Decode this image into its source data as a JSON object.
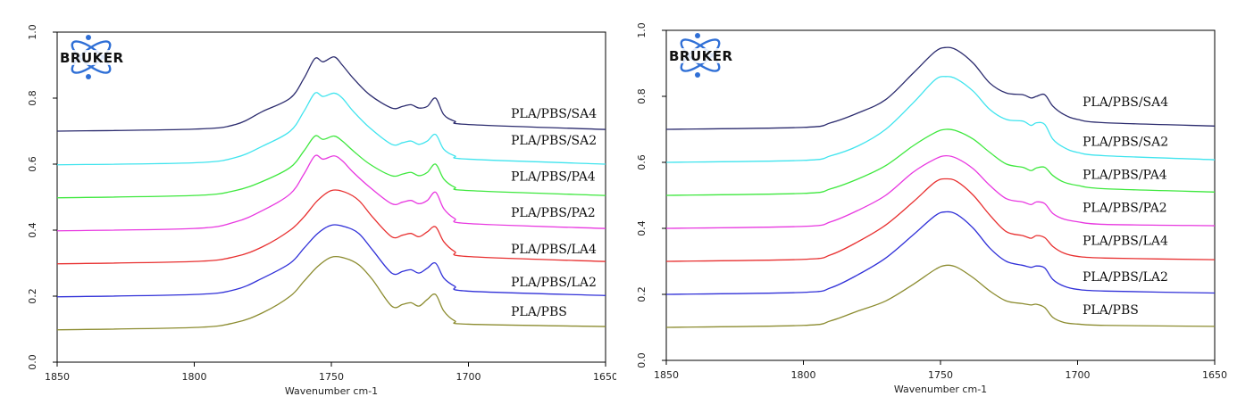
{
  "chart_data": [
    {
      "type": "line",
      "title": "",
      "xlabel": "Wavenumber cm-1",
      "ylabel": "",
      "xlim": [
        1850,
        1650
      ],
      "x_reversed": true,
      "ylim": [
        0.0,
        1.0
      ],
      "xticks": [
        "1850",
        "1800",
        "1750",
        "1700",
        "1650"
      ],
      "yticks": [
        "0.0",
        "0.2",
        "0.4",
        "0.6",
        "0.8",
        "1.0"
      ],
      "grid": false,
      "logo": "BRUKER",
      "series": [
        {
          "name": "PLA/PBS/SA4",
          "color": "#2b2b6e",
          "x": [
            1850,
            1800,
            1785,
            1775,
            1765,
            1760,
            1756,
            1753,
            1749,
            1746,
            1742,
            1736,
            1728,
            1724,
            1721,
            1718,
            1715,
            1712,
            1709,
            1705,
            1700,
            1650
          ],
          "y": [
            0.7,
            0.706,
            0.72,
            0.76,
            0.8,
            0.86,
            0.92,
            0.91,
            0.925,
            0.9,
            0.86,
            0.81,
            0.77,
            0.775,
            0.78,
            0.77,
            0.775,
            0.8,
            0.75,
            0.73,
            0.72,
            0.705
          ]
        },
        {
          "name": "PLA/PBS/SA2",
          "color": "#40e4ee",
          "x": [
            1850,
            1800,
            1785,
            1775,
            1765,
            1760,
            1756,
            1753,
            1749,
            1746,
            1742,
            1736,
            1728,
            1724,
            1721,
            1718,
            1715,
            1712,
            1709,
            1705,
            1700,
            1650
          ],
          "y": [
            0.598,
            0.604,
            0.62,
            0.655,
            0.7,
            0.76,
            0.815,
            0.805,
            0.815,
            0.8,
            0.76,
            0.71,
            0.66,
            0.665,
            0.67,
            0.66,
            0.67,
            0.69,
            0.645,
            0.625,
            0.615,
            0.6
          ]
        },
        {
          "name": "PLA/PBS/PA4",
          "color": "#3ee83e",
          "x": [
            1850,
            1800,
            1785,
            1775,
            1765,
            1760,
            1756,
            1753,
            1749,
            1746,
            1742,
            1736,
            1728,
            1724,
            1721,
            1718,
            1715,
            1712,
            1709,
            1705,
            1700,
            1650
          ],
          "y": [
            0.498,
            0.505,
            0.52,
            0.548,
            0.59,
            0.64,
            0.685,
            0.675,
            0.685,
            0.67,
            0.64,
            0.6,
            0.565,
            0.57,
            0.575,
            0.565,
            0.575,
            0.6,
            0.555,
            0.53,
            0.52,
            0.505
          ]
        },
        {
          "name": "PLA/PBS/PA2",
          "color": "#e838e0",
          "x": [
            1850,
            1800,
            1785,
            1775,
            1765,
            1760,
            1756,
            1753,
            1749,
            1746,
            1742,
            1736,
            1728,
            1724,
            1721,
            1718,
            1715,
            1712,
            1709,
            1705,
            1700,
            1650
          ],
          "y": [
            0.398,
            0.405,
            0.425,
            0.46,
            0.51,
            0.57,
            0.625,
            0.615,
            0.625,
            0.61,
            0.575,
            0.53,
            0.48,
            0.485,
            0.49,
            0.48,
            0.49,
            0.515,
            0.465,
            0.435,
            0.42,
            0.405
          ]
        },
        {
          "name": "PLA/PBS/LA4",
          "color": "#e83030",
          "x": [
            1850,
            1800,
            1785,
            1775,
            1765,
            1760,
            1755,
            1750,
            1745,
            1740,
            1735,
            1728,
            1724,
            1721,
            1718,
            1715,
            1712,
            1709,
            1705,
            1700,
            1650
          ],
          "y": [
            0.298,
            0.305,
            0.32,
            0.35,
            0.4,
            0.44,
            0.49,
            0.52,
            0.515,
            0.49,
            0.44,
            0.38,
            0.385,
            0.39,
            0.38,
            0.395,
            0.41,
            0.365,
            0.335,
            0.32,
            0.305
          ]
        },
        {
          "name": "PLA/PBS/LA2",
          "color": "#3030d8",
          "x": [
            1850,
            1800,
            1785,
            1775,
            1765,
            1760,
            1755,
            1750,
            1745,
            1740,
            1735,
            1728,
            1724,
            1721,
            1718,
            1715,
            1712,
            1709,
            1705,
            1700,
            1650
          ],
          "y": [
            0.198,
            0.205,
            0.22,
            0.255,
            0.3,
            0.345,
            0.39,
            0.415,
            0.41,
            0.39,
            0.34,
            0.27,
            0.275,
            0.28,
            0.27,
            0.285,
            0.3,
            0.255,
            0.23,
            0.215,
            0.202
          ]
        },
        {
          "name": "PLA/PBS",
          "color": "#8c8c30",
          "x": [
            1850,
            1800,
            1785,
            1775,
            1765,
            1760,
            1755,
            1750,
            1745,
            1740,
            1735,
            1728,
            1724,
            1721,
            1718,
            1715,
            1712,
            1709,
            1705,
            1700,
            1650
          ],
          "y": [
            0.098,
            0.105,
            0.12,
            0.15,
            0.2,
            0.245,
            0.29,
            0.318,
            0.315,
            0.295,
            0.25,
            0.17,
            0.175,
            0.18,
            0.17,
            0.19,
            0.205,
            0.155,
            0.125,
            0.115,
            0.108
          ]
        }
      ],
      "labels_y": [
        0.74,
        0.66,
        0.55,
        0.44,
        0.33,
        0.23,
        0.14
      ]
    },
    {
      "type": "line",
      "title": "",
      "xlabel": "Wavenumber cm-1",
      "ylabel": "",
      "xlim": [
        1850,
        1650
      ],
      "x_reversed": true,
      "ylim": [
        0.0,
        1.0
      ],
      "xticks": [
        "1850",
        "1800",
        "1750",
        "1700",
        "1650"
      ],
      "yticks": [
        "0.0",
        "0.2",
        "0.4",
        "0.6",
        "0.8",
        "1.0"
      ],
      "grid": false,
      "logo": "BRUKER",
      "series": [
        {
          "name": "PLA/PBS/SA4",
          "color": "#2b2b6e",
          "x": [
            1850,
            1800,
            1790,
            1780,
            1770,
            1760,
            1752,
            1748,
            1744,
            1738,
            1732,
            1726,
            1720,
            1717,
            1715,
            1712,
            1709,
            1705,
            1700,
            1690,
            1650
          ],
          "y": [
            0.7,
            0.706,
            0.72,
            0.75,
            0.79,
            0.87,
            0.935,
            0.948,
            0.94,
            0.9,
            0.84,
            0.81,
            0.805,
            0.795,
            0.8,
            0.805,
            0.77,
            0.745,
            0.73,
            0.72,
            0.71
          ]
        },
        {
          "name": "PLA/PBS/SA2",
          "color": "#40e4ee",
          "x": [
            1850,
            1800,
            1790,
            1780,
            1770,
            1760,
            1752,
            1748,
            1744,
            1738,
            1732,
            1726,
            1720,
            1717,
            1715,
            1712,
            1709,
            1705,
            1700,
            1690,
            1650
          ],
          "y": [
            0.6,
            0.606,
            0.62,
            0.65,
            0.7,
            0.78,
            0.85,
            0.86,
            0.852,
            0.815,
            0.76,
            0.73,
            0.725,
            0.712,
            0.72,
            0.715,
            0.67,
            0.645,
            0.63,
            0.62,
            0.608
          ]
        },
        {
          "name": "PLA/PBS/PA4",
          "color": "#3ee83e",
          "x": [
            1850,
            1800,
            1790,
            1780,
            1770,
            1760,
            1752,
            1748,
            1744,
            1738,
            1732,
            1726,
            1720,
            1717,
            1715,
            1712,
            1709,
            1705,
            1700,
            1690,
            1650
          ],
          "y": [
            0.5,
            0.506,
            0.52,
            0.55,
            0.59,
            0.65,
            0.69,
            0.7,
            0.695,
            0.67,
            0.63,
            0.595,
            0.585,
            0.575,
            0.583,
            0.585,
            0.56,
            0.54,
            0.53,
            0.52,
            0.51
          ]
        },
        {
          "name": "PLA/PBS/PA2",
          "color": "#e838e0",
          "x": [
            1850,
            1800,
            1790,
            1780,
            1770,
            1760,
            1752,
            1748,
            1744,
            1738,
            1732,
            1726,
            1720,
            1717,
            1715,
            1712,
            1709,
            1705,
            1700,
            1690,
            1650
          ],
          "y": [
            0.4,
            0.406,
            0.42,
            0.455,
            0.5,
            0.57,
            0.61,
            0.62,
            0.612,
            0.58,
            0.53,
            0.49,
            0.48,
            0.472,
            0.48,
            0.475,
            0.445,
            0.428,
            0.42,
            0.412,
            0.408
          ]
        },
        {
          "name": "PLA/PBS/LA4",
          "color": "#e83030",
          "x": [
            1850,
            1800,
            1790,
            1780,
            1770,
            1760,
            1752,
            1748,
            1744,
            1738,
            1732,
            1726,
            1720,
            1717,
            1715,
            1712,
            1709,
            1705,
            1700,
            1690,
            1650
          ],
          "y": [
            0.3,
            0.306,
            0.32,
            0.36,
            0.41,
            0.48,
            0.54,
            0.55,
            0.542,
            0.5,
            0.44,
            0.39,
            0.378,
            0.37,
            0.378,
            0.372,
            0.345,
            0.325,
            0.315,
            0.31,
            0.305
          ]
        },
        {
          "name": "PLA/PBS/LA2",
          "color": "#3030d8",
          "x": [
            1850,
            1800,
            1790,
            1780,
            1770,
            1760,
            1752,
            1748,
            1744,
            1738,
            1732,
            1726,
            1720,
            1717,
            1715,
            1712,
            1709,
            1705,
            1700,
            1690,
            1650
          ],
          "y": [
            0.2,
            0.206,
            0.22,
            0.26,
            0.31,
            0.38,
            0.438,
            0.45,
            0.442,
            0.4,
            0.34,
            0.3,
            0.288,
            0.282,
            0.286,
            0.28,
            0.245,
            0.225,
            0.215,
            0.21,
            0.204
          ]
        },
        {
          "name": "PLA/PBS",
          "color": "#8c8c30",
          "x": [
            1850,
            1800,
            1790,
            1780,
            1770,
            1760,
            1752,
            1748,
            1744,
            1738,
            1732,
            1726,
            1720,
            1717,
            1715,
            1712,
            1709,
            1705,
            1700,
            1690,
            1650
          ],
          "y": [
            0.1,
            0.106,
            0.12,
            0.15,
            0.18,
            0.23,
            0.275,
            0.288,
            0.282,
            0.25,
            0.21,
            0.18,
            0.172,
            0.168,
            0.17,
            0.16,
            0.13,
            0.115,
            0.11,
            0.106,
            0.103
          ]
        }
      ],
      "labels_y": [
        0.77,
        0.65,
        0.55,
        0.45,
        0.35,
        0.24,
        0.14
      ]
    }
  ]
}
